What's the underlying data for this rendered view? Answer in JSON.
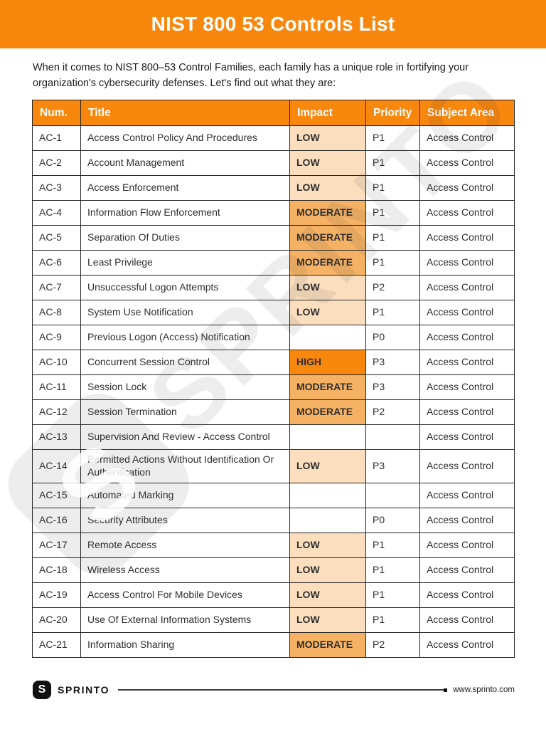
{
  "banner": {
    "title": "NIST 800 53 Controls List",
    "bg_color": "#F8870E"
  },
  "intro": "When it comes to NIST 800–53 Control Families, each family has a unique role in fortifying your organization's cybersecurity defenses. Let's find out what they are:",
  "table": {
    "headers": [
      "Num.",
      "Title",
      "Impact",
      "Priority",
      "Subject Area"
    ],
    "rows": [
      {
        "num": "AC-1",
        "title": "Access Control Policy And Procedures",
        "impact": "LOW",
        "priority": "P1",
        "subject": "Access Control"
      },
      {
        "num": "AC-2",
        "title": "Account Management",
        "impact": "LOW",
        "priority": "P1",
        "subject": "Access Control"
      },
      {
        "num": "AC-3",
        "title": "Access Enforcement",
        "impact": "LOW",
        "priority": "P1",
        "subject": "Access Control"
      },
      {
        "num": "AC-4",
        "title": "Information Flow Enforcement",
        "impact": "MODERATE",
        "priority": "P1",
        "subject": "Access Control"
      },
      {
        "num": "AC-5",
        "title": "Separation Of Duties",
        "impact": "MODERATE",
        "priority": "P1",
        "subject": "Access Control"
      },
      {
        "num": "AC-6",
        "title": "Least Privilege",
        "impact": "MODERATE",
        "priority": "P1",
        "subject": "Access Control"
      },
      {
        "num": "AC-7",
        "title": "Unsuccessful Logon Attempts",
        "impact": "LOW",
        "priority": "P2",
        "subject": "Access Control"
      },
      {
        "num": "AC-8",
        "title": "System Use Notification",
        "impact": "LOW",
        "priority": "P1",
        "subject": "Access Control"
      },
      {
        "num": "AC-9",
        "title": "Previous Logon (Access) Notification",
        "impact": "",
        "priority": "P0",
        "subject": "Access Control"
      },
      {
        "num": "AC-10",
        "title": "Concurrent Session Control",
        "impact": "HIGH",
        "priority": "P3",
        "subject": "Access Control"
      },
      {
        "num": "AC-11",
        "title": "Session Lock",
        "impact": "MODERATE",
        "priority": "P3",
        "subject": "Access Control"
      },
      {
        "num": "AC-12",
        "title": "Session Termination",
        "impact": "MODERATE",
        "priority": "P2",
        "subject": "Access Control"
      },
      {
        "num": "AC-13",
        "title": "Supervision And Review - Access Control",
        "impact": "",
        "priority": "",
        "subject": "Access Control"
      },
      {
        "num": "AC-14",
        "title": "Permitted Actions Without Identification Or Authentication",
        "impact": "LOW",
        "priority": "P3",
        "subject": "Access Control"
      },
      {
        "num": "AC-15",
        "title": "Automated Marking",
        "impact": "",
        "priority": "",
        "subject": "Access Control"
      },
      {
        "num": "AC-16",
        "title": "Security Attributes",
        "impact": "",
        "priority": "P0",
        "subject": "Access Control"
      },
      {
        "num": "AC-17",
        "title": "Remote Access",
        "impact": "LOW",
        "priority": "P1",
        "subject": "Access Control"
      },
      {
        "num": "AC-18",
        "title": "Wireless Access",
        "impact": "LOW",
        "priority": "P1",
        "subject": "Access Control"
      },
      {
        "num": "AC-19",
        "title": "Access Control For Mobile Devices",
        "impact": "LOW",
        "priority": "P1",
        "subject": "Access Control"
      },
      {
        "num": "AC-20",
        "title": "Use Of External Information Systems",
        "impact": "LOW",
        "priority": "P1",
        "subject": "Access Control"
      },
      {
        "num": "AC-21",
        "title": "Information Sharing",
        "impact": "MODERATE",
        "priority": "P2",
        "subject": "Access Control"
      }
    ]
  },
  "impact_colors": {
    "LOW": "#FADEBD",
    "MODERATE": "#F6B264",
    "HIGH": "#F8870E"
  },
  "watermark": {
    "text": "SPRINTO",
    "logo_letter": "S"
  },
  "footer": {
    "brand": "SPRINTO",
    "logo_letter": "S",
    "website": "www.sprinto.com"
  }
}
